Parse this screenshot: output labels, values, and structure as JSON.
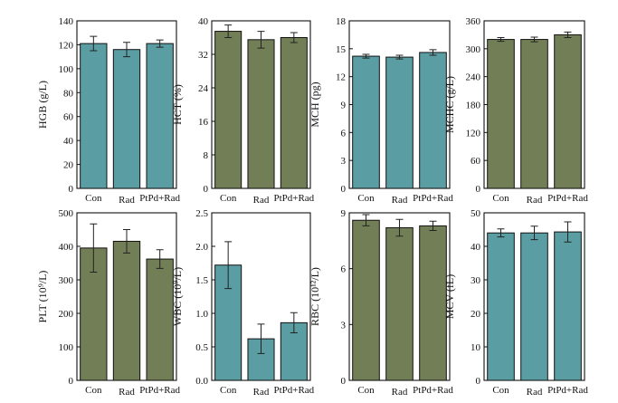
{
  "colors": {
    "teal": "#5a9ea4",
    "olive": "#727e55"
  },
  "chart_data": [
    {
      "type": "bar",
      "ylabel": "HGB (g/L)",
      "ylim": [
        0,
        140
      ],
      "yticks": [
        0,
        20,
        40,
        60,
        80,
        100,
        120,
        140
      ],
      "categories": [
        "Con",
        "Rad",
        "PtPd+Rad"
      ],
      "values": [
        121,
        116,
        121
      ],
      "errors": [
        6,
        6,
        3
      ],
      "color": "teal"
    },
    {
      "type": "bar",
      "ylabel": "HCT (%)",
      "ylim": [
        0,
        40
      ],
      "yticks": [
        0,
        8,
        16,
        24,
        32,
        40
      ],
      "categories": [
        "Con",
        "Rad",
        "PtPd+Rad"
      ],
      "values": [
        37.5,
        35.5,
        36
      ],
      "errors": [
        1.5,
        2,
        1.2
      ],
      "color": "olive"
    },
    {
      "type": "bar",
      "ylabel": "MCH (pg)",
      "ylim": [
        0,
        18
      ],
      "yticks": [
        0,
        3,
        6,
        9,
        12,
        15,
        18
      ],
      "categories": [
        "Con",
        "Rad",
        "PtPd+Rad"
      ],
      "values": [
        14.2,
        14.1,
        14.6
      ],
      "errors": [
        0.2,
        0.2,
        0.3
      ],
      "color": "teal"
    },
    {
      "type": "bar",
      "ylabel": "MCHC (g/L)",
      "ylim": [
        0,
        360
      ],
      "yticks": [
        0,
        60,
        120,
        180,
        240,
        300,
        360
      ],
      "categories": [
        "Con",
        "Rad",
        "PtPd+Rad"
      ],
      "values": [
        320,
        320,
        330
      ],
      "errors": [
        4,
        5,
        6
      ],
      "color": "olive"
    },
    {
      "type": "bar",
      "ylabel": "PLT (10⁹/L)",
      "ylim": [
        0,
        500
      ],
      "yticks": [
        0,
        100,
        200,
        300,
        400,
        500
      ],
      "categories": [
        "Con",
        "Rad",
        "PtPd+Rad"
      ],
      "values": [
        395,
        415,
        362
      ],
      "errors": [
        72,
        35,
        28
      ],
      "color": "olive"
    },
    {
      "type": "bar",
      "ylabel": "WBC (10⁹/L)",
      "ylim": [
        0,
        2.5
      ],
      "yticks": [
        "0.0",
        "0.5",
        "1.0",
        "1.5",
        "2.0",
        "2.5"
      ],
      "categories": [
        "Con",
        "Rad",
        "PtPd+Rad"
      ],
      "values": [
        1.72,
        0.62,
        0.86
      ],
      "errors": [
        0.35,
        0.22,
        0.15
      ],
      "color": "teal"
    },
    {
      "type": "bar",
      "ylabel": "RBC (10¹²/L)",
      "ylim": [
        0,
        9
      ],
      "yticks": [
        0,
        3,
        6,
        9
      ],
      "categories": [
        "Con",
        "Rad",
        "PtPd+Rad"
      ],
      "values": [
        8.6,
        8.2,
        8.3
      ],
      "errors": [
        0.3,
        0.45,
        0.25
      ],
      "color": "olive"
    },
    {
      "type": "bar",
      "ylabel": "MCV (fL)",
      "ylim": [
        0,
        50
      ],
      "yticks": [
        0,
        10,
        20,
        30,
        40,
        50
      ],
      "categories": [
        "Con",
        "Rad",
        "PtPd+Rad"
      ],
      "values": [
        44,
        44,
        44.3
      ],
      "errors": [
        1.2,
        2,
        3
      ],
      "color": "teal"
    }
  ]
}
